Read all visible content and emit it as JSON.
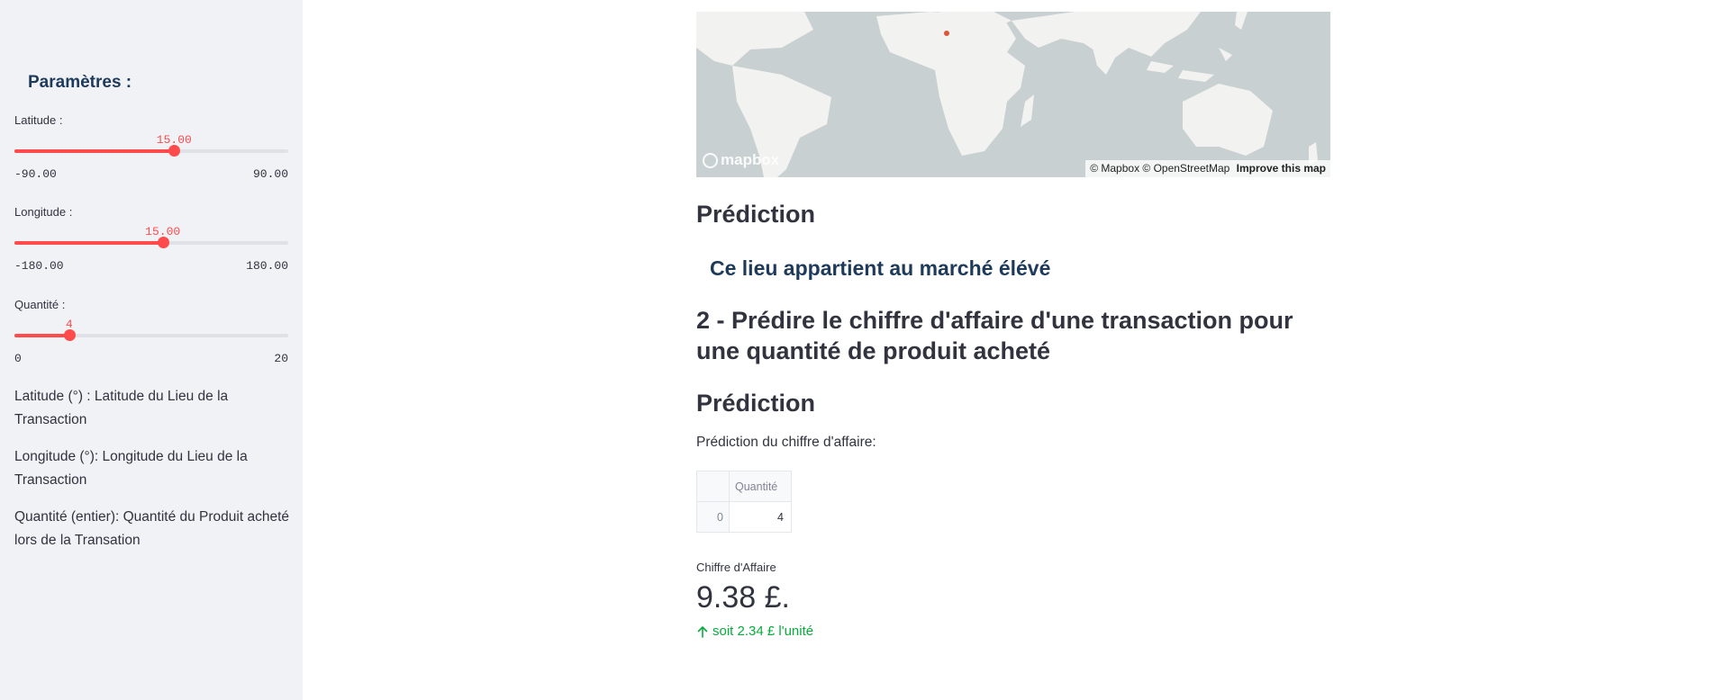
{
  "sidebar": {
    "title": "Paramètres :",
    "sliders": [
      {
        "label": "Latitude :",
        "value": "15.00",
        "min": "-90.00",
        "max": "90.00",
        "fraction": 0.5833
      },
      {
        "label": "Longitude :",
        "value": "15.00",
        "min": "-180.00",
        "max": "180.00",
        "fraction": 0.5417
      },
      {
        "label": "Quantité :",
        "value": "4",
        "min": "0",
        "max": "20",
        "fraction": 0.2
      }
    ],
    "help": [
      "Latitude (°) : Latitude du Lieu de la Transaction",
      "Longitude (°): Longitude du Lieu de la Transaction",
      "Quantité (entier): Quantité du Produit acheté lors de la Transation"
    ],
    "accent_color": "#ff4b4b"
  },
  "map": {
    "logo": "mapbox",
    "attribution": "© Mapbox © OpenStreetMap",
    "improve": "Improve this map",
    "point_color": "#e0533a"
  },
  "main": {
    "prediction_heading_1": "Prédiction",
    "market_text": "Ce lieu appartient au marché élévé",
    "section_heading": "2 - Prédire le chiffre d'affaire d'une transaction pour une quantité de produit acheté",
    "prediction_heading_2": "Prédiction",
    "prediction_para": "Prédiction du chiffre d'affaire:",
    "table": {
      "column": "Quantité",
      "rows": [
        {
          "index": "0",
          "value": "4"
        }
      ]
    },
    "metric": {
      "label": "Chiffre d'Affaire",
      "value": "9.38 £.",
      "delta": "soit 2.34 £ l'unité",
      "delta_icon": "arrow-up-icon",
      "delta_color": "#09ab3b"
    }
  }
}
